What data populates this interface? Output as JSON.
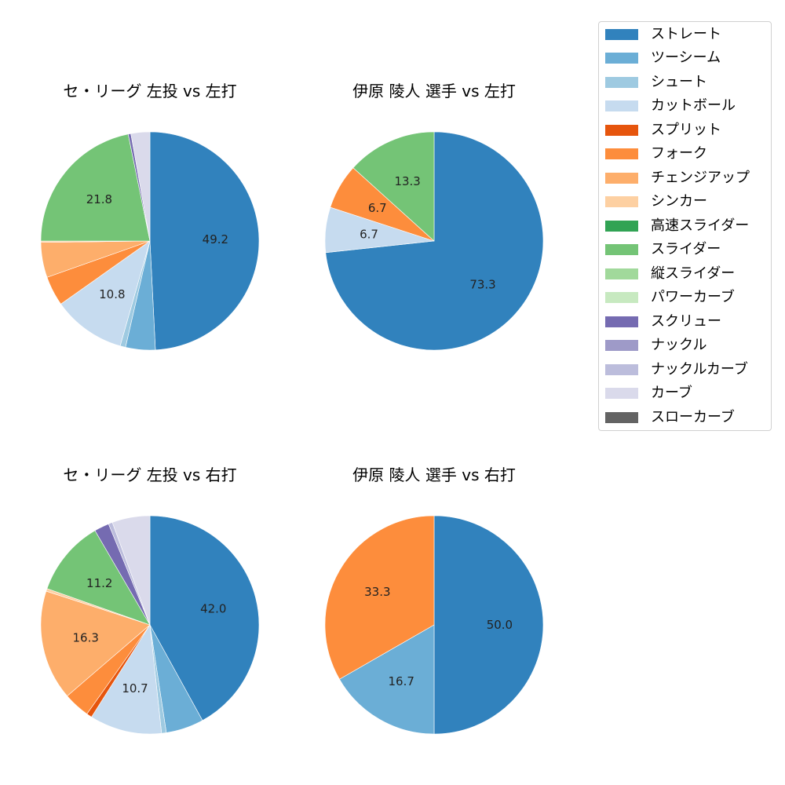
{
  "legend": {
    "items": [
      {
        "label": "ストレート",
        "color": "#3182bd"
      },
      {
        "label": "ツーシーム",
        "color": "#6baed6"
      },
      {
        "label": "シュート",
        "color": "#9ecae1"
      },
      {
        "label": "カットボール",
        "color": "#c6dbef"
      },
      {
        "label": "スプリット",
        "color": "#e6550d"
      },
      {
        "label": "フォーク",
        "color": "#fd8d3c"
      },
      {
        "label": "チェンジアップ",
        "color": "#fdae6b"
      },
      {
        "label": "シンカー",
        "color": "#fdd0a2"
      },
      {
        "label": "高速スライダー",
        "color": "#31a354"
      },
      {
        "label": "スライダー",
        "color": "#74c476"
      },
      {
        "label": "縦スライダー",
        "color": "#a1d99b"
      },
      {
        "label": "パワーカーブ",
        "color": "#c7e9c0"
      },
      {
        "label": "スクリュー",
        "color": "#756bb1"
      },
      {
        "label": "ナックル",
        "color": "#9e9ac8"
      },
      {
        "label": "ナックルカーブ",
        "color": "#bcbddc"
      },
      {
        "label": "カーブ",
        "color": "#dadaeb"
      },
      {
        "label": "スローカーブ",
        "color": "#636363"
      }
    ]
  },
  "charts": [
    {
      "title": "セ・リーグ 左投 vs 左打"
    },
    {
      "title": "伊原 陵人 選手 vs 左打"
    },
    {
      "title": "セ・リーグ 左投 vs 右打"
    },
    {
      "title": "伊原 陵人 選手 vs 右打"
    }
  ],
  "chart_data": [
    {
      "type": "pie",
      "title": "セ・リーグ 左投 vs 左打",
      "start_angle": 90,
      "direction": "clockwise",
      "labels_shown_min_pct": 10,
      "slices": [
        {
          "name": "ストレート",
          "value": 49.2,
          "label": "49.2"
        },
        {
          "name": "ツーシーム",
          "value": 4.4
        },
        {
          "name": "シュート",
          "value": 0.8
        },
        {
          "name": "カットボール",
          "value": 10.8,
          "label": "10.8"
        },
        {
          "name": "フォーク",
          "value": 4.4
        },
        {
          "name": "チェンジアップ",
          "value": 5.2
        },
        {
          "name": "シンカー",
          "value": 0.2
        },
        {
          "name": "スライダー",
          "value": 21.8,
          "label": "21.8"
        },
        {
          "name": "スクリュー",
          "value": 0.4
        },
        {
          "name": "カーブ",
          "value": 2.8
        }
      ]
    },
    {
      "type": "pie",
      "title": "伊原 陵人 選手 vs 左打",
      "start_angle": 90,
      "direction": "clockwise",
      "slices": [
        {
          "name": "ストレート",
          "value": 73.3,
          "label": "73.3"
        },
        {
          "name": "カットボール",
          "value": 6.7,
          "label": "6.7"
        },
        {
          "name": "フォーク",
          "value": 6.7,
          "label": "6.7"
        },
        {
          "name": "スライダー",
          "value": 13.3,
          "label": "13.3"
        }
      ]
    },
    {
      "type": "pie",
      "title": "セ・リーグ 左投 vs 右打",
      "start_angle": 90,
      "direction": "clockwise",
      "slices": [
        {
          "name": "ストレート",
          "value": 42.0,
          "label": "42.0"
        },
        {
          "name": "ツーシーム",
          "value": 5.6
        },
        {
          "name": "シュート",
          "value": 0.7
        },
        {
          "name": "カットボール",
          "value": 10.7,
          "label": "10.7"
        },
        {
          "name": "スプリット",
          "value": 0.8
        },
        {
          "name": "フォーク",
          "value": 3.9
        },
        {
          "name": "チェンジアップ",
          "value": 16.3,
          "label": "16.3"
        },
        {
          "name": "シンカー",
          "value": 0.4
        },
        {
          "name": "スライダー",
          "value": 11.2,
          "label": "11.2"
        },
        {
          "name": "スクリュー",
          "value": 2.2
        },
        {
          "name": "ナックルカーブ",
          "value": 0.6
        },
        {
          "name": "カーブ",
          "value": 5.6
        }
      ]
    },
    {
      "type": "pie",
      "title": "伊原 陵人 選手 vs 右打",
      "start_angle": 90,
      "direction": "clockwise",
      "slices": [
        {
          "name": "ストレート",
          "value": 50.0,
          "label": "50.0"
        },
        {
          "name": "ツーシーム",
          "value": 16.7,
          "label": "16.7"
        },
        {
          "name": "フォーク",
          "value": 33.3,
          "label": "33.3"
        }
      ]
    }
  ]
}
